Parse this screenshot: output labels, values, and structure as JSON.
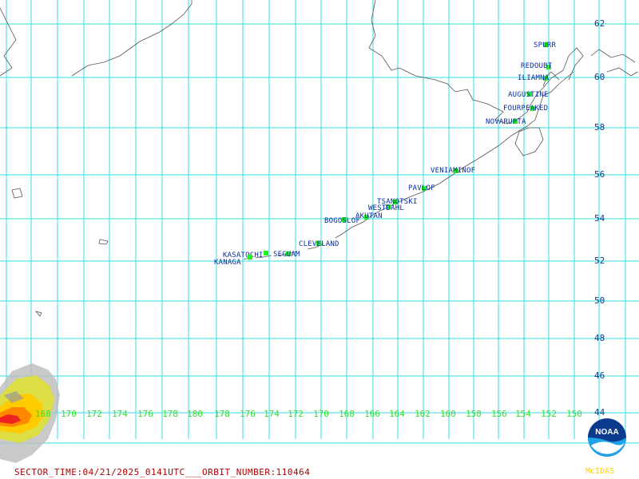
{
  "map": {
    "latitude_labels": [
      "62",
      "60",
      "58",
      "56",
      "54",
      "52",
      "50",
      "48",
      "46",
      "44"
    ],
    "longitude_labels": [
      "168",
      "170",
      "172",
      "174",
      "176",
      "178",
      "180",
      "178",
      "176",
      "174",
      "172",
      "170",
      "168",
      "166",
      "164",
      "162",
      "160",
      "158",
      "156",
      "154",
      "152",
      "150"
    ],
    "grid_color": "#33dddd",
    "coastline_color": "#555555",
    "volcanoes": [
      {
        "name": "SPURR"
      },
      {
        "name": "REDOUBT"
      },
      {
        "name": "ILIAMNA"
      },
      {
        "name": "AUGUSTINE"
      },
      {
        "name": "FOURPEAKED"
      },
      {
        "name": "NOVARUPTA"
      },
      {
        "name": "VENIAMINOF"
      },
      {
        "name": "PAVLOF"
      },
      {
        "name": "TSANOTSKI"
      },
      {
        "name": "WESTDAHL"
      },
      {
        "name": "AKUTAN"
      },
      {
        "name": "BOGOSLOF"
      },
      {
        "name": "CLEVELAND"
      },
      {
        "name": "SEGUAM"
      },
      {
        "name": "KASATOCHI"
      },
      {
        "name": "KANAGA"
      }
    ],
    "marker_color": "#22ee22",
    "label_color": "#0a2ea0"
  },
  "footer": {
    "sector_text": "SECTOR_TIME:04/21/2025_0141UTC___ORBIT_NUMBER:110464",
    "color": "#b00000"
  },
  "logo": {
    "text": "NOAA",
    "caption": "McIDAS",
    "caption_color": "#ffd200"
  }
}
